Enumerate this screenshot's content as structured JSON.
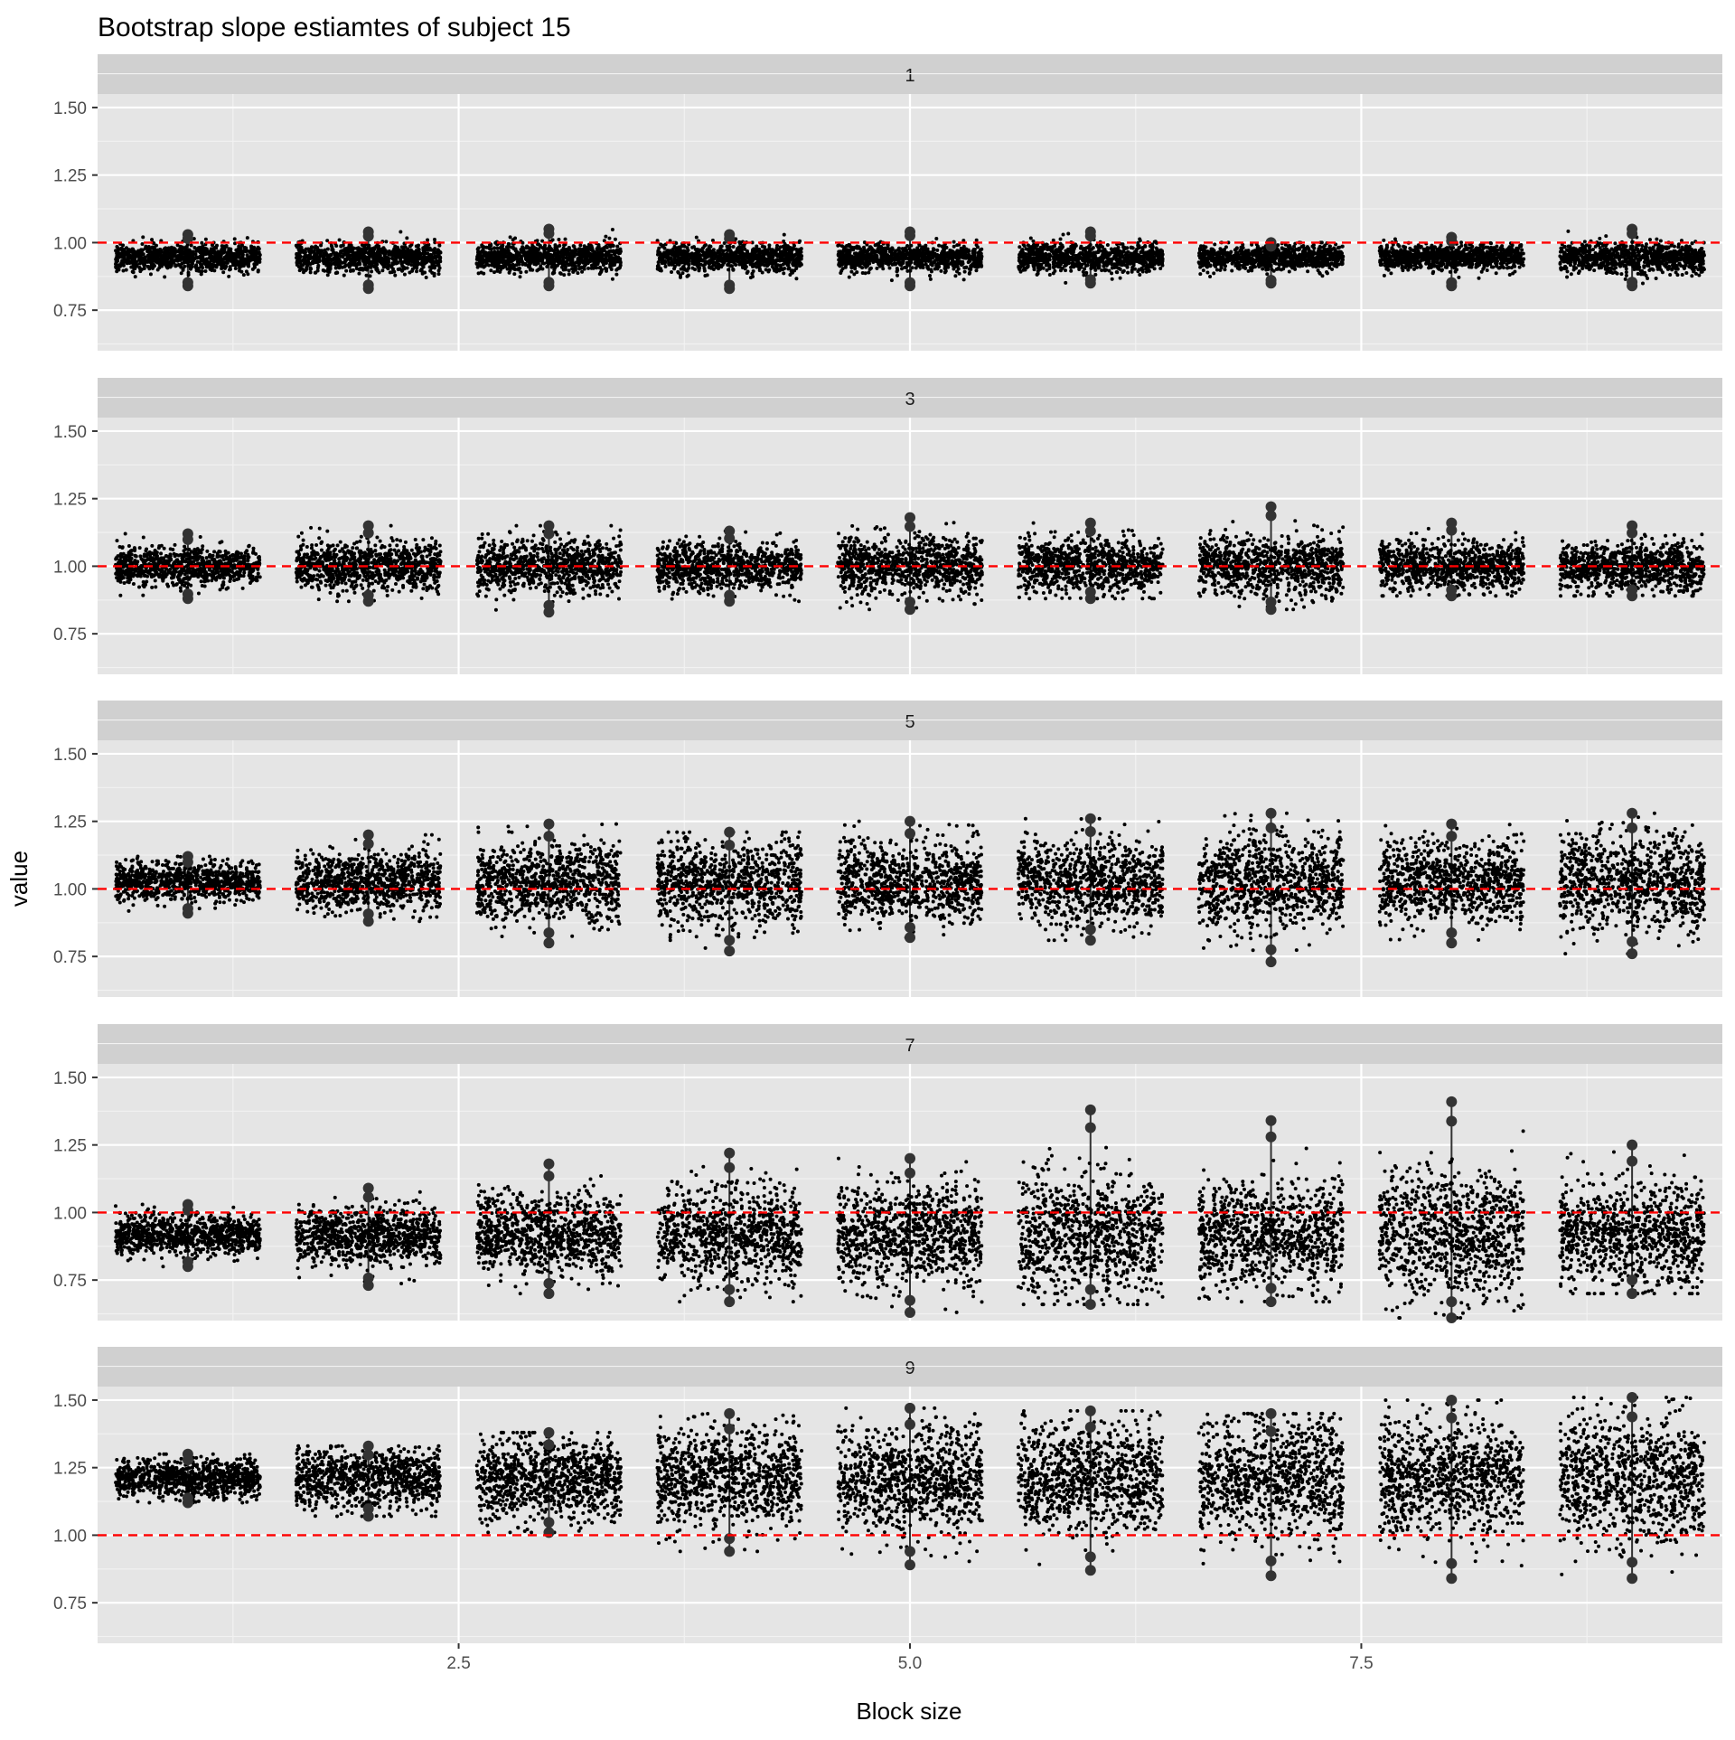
{
  "chart_data": {
    "type": "scatter",
    "title": "Bootstrap slope estiamtes of subject 15",
    "xlabel": "Block size",
    "ylabel": "value",
    "x_ticks": [
      2.5,
      5.0,
      7.5
    ],
    "x_tick_labels": [
      "2.5",
      "5.0",
      "7.5"
    ],
    "xlim": [
      0.5,
      9.5
    ],
    "y_ticks": [
      0.75,
      1.0,
      1.25,
      1.5
    ],
    "y_tick_labels": [
      "0.75",
      "1.00",
      "1.25",
      "1.50"
    ],
    "ylim": [
      0.6,
      1.55
    ],
    "reference_line": {
      "y": 1.0,
      "color": "#ff0000",
      "style": "dashed"
    },
    "grid": true,
    "panel_background": "#e5e5e5",
    "strip_background": "#d0d0d0",
    "point_color": "#000000",
    "outlier_color": "#333333",
    "panels": [
      {
        "label": "1",
        "groups": [
          {
            "x": 1,
            "center": 0.945,
            "spread": 0.025,
            "min": 0.84,
            "max": 1.03
          },
          {
            "x": 2,
            "center": 0.945,
            "spread": 0.027,
            "min": 0.83,
            "max": 1.04
          },
          {
            "x": 3,
            "center": 0.945,
            "spread": 0.027,
            "min": 0.84,
            "max": 1.05
          },
          {
            "x": 4,
            "center": 0.945,
            "spread": 0.026,
            "min": 0.83,
            "max": 1.03
          },
          {
            "x": 5,
            "center": 0.945,
            "spread": 0.024,
            "min": 0.84,
            "max": 1.04
          },
          {
            "x": 6,
            "center": 0.945,
            "spread": 0.026,
            "min": 0.85,
            "max": 1.04
          },
          {
            "x": 7,
            "center": 0.945,
            "spread": 0.022,
            "min": 0.85,
            "max": 1.0
          },
          {
            "x": 8,
            "center": 0.945,
            "spread": 0.024,
            "min": 0.84,
            "max": 1.02
          },
          {
            "x": 9,
            "center": 0.945,
            "spread": 0.028,
            "min": 0.84,
            "max": 1.05
          }
        ]
      },
      {
        "label": "3",
        "groups": [
          {
            "x": 1,
            "center": 1.0,
            "spread": 0.035,
            "min": 0.88,
            "max": 1.12
          },
          {
            "x": 2,
            "center": 1.0,
            "spread": 0.045,
            "min": 0.87,
            "max": 1.15
          },
          {
            "x": 3,
            "center": 1.0,
            "spread": 0.05,
            "min": 0.83,
            "max": 1.15
          },
          {
            "x": 4,
            "center": 1.0,
            "spread": 0.045,
            "min": 0.87,
            "max": 1.13
          },
          {
            "x": 5,
            "center": 1.0,
            "spread": 0.055,
            "min": 0.84,
            "max": 1.18
          },
          {
            "x": 6,
            "center": 1.0,
            "spread": 0.05,
            "min": 0.88,
            "max": 1.16
          },
          {
            "x": 7,
            "center": 1.0,
            "spread": 0.055,
            "min": 0.84,
            "max": 1.22
          },
          {
            "x": 8,
            "center": 1.0,
            "spread": 0.045,
            "min": 0.89,
            "max": 1.16
          },
          {
            "x": 9,
            "center": 1.0,
            "spread": 0.045,
            "min": 0.89,
            "max": 1.15
          }
        ]
      },
      {
        "label": "5",
        "groups": [
          {
            "x": 1,
            "center": 1.025,
            "spread": 0.035,
            "min": 0.91,
            "max": 1.12
          },
          {
            "x": 2,
            "center": 1.025,
            "spread": 0.055,
            "min": 0.88,
            "max": 1.2
          },
          {
            "x": 3,
            "center": 1.025,
            "spread": 0.075,
            "min": 0.8,
            "max": 1.24
          },
          {
            "x": 4,
            "center": 1.025,
            "spread": 0.08,
            "min": 0.77,
            "max": 1.21
          },
          {
            "x": 5,
            "center": 1.025,
            "spread": 0.075,
            "min": 0.82,
            "max": 1.25
          },
          {
            "x": 6,
            "center": 1.025,
            "spread": 0.08,
            "min": 0.81,
            "max": 1.26
          },
          {
            "x": 7,
            "center": 1.025,
            "spread": 0.09,
            "min": 0.73,
            "max": 1.28
          },
          {
            "x": 8,
            "center": 1.025,
            "spread": 0.075,
            "min": 0.8,
            "max": 1.24
          },
          {
            "x": 9,
            "center": 1.025,
            "spread": 0.09,
            "min": 0.76,
            "max": 1.28
          }
        ]
      },
      {
        "label": "7",
        "groups": [
          {
            "x": 1,
            "center": 0.915,
            "spread": 0.035,
            "min": 0.8,
            "max": 1.03
          },
          {
            "x": 2,
            "center": 0.915,
            "spread": 0.055,
            "min": 0.73,
            "max": 1.09
          },
          {
            "x": 3,
            "center": 0.915,
            "spread": 0.075,
            "min": 0.7,
            "max": 1.18
          },
          {
            "x": 4,
            "center": 0.915,
            "spread": 0.09,
            "min": 0.67,
            "max": 1.22
          },
          {
            "x": 5,
            "center": 0.915,
            "spread": 0.09,
            "min": 0.63,
            "max": 1.2
          },
          {
            "x": 6,
            "center": 0.915,
            "spread": 0.11,
            "min": 0.66,
            "max": 1.38
          },
          {
            "x": 7,
            "center": 0.915,
            "spread": 0.1,
            "min": 0.67,
            "max": 1.34
          },
          {
            "x": 8,
            "center": 0.915,
            "spread": 0.12,
            "min": 0.61,
            "max": 1.41
          },
          {
            "x": 9,
            "center": 0.915,
            "spread": 0.1,
            "min": 0.7,
            "max": 1.25
          }
        ]
      },
      {
        "label": "9",
        "groups": [
          {
            "x": 1,
            "center": 1.21,
            "spread": 0.035,
            "min": 1.12,
            "max": 1.3
          },
          {
            "x": 2,
            "center": 1.21,
            "spread": 0.055,
            "min": 1.07,
            "max": 1.33
          },
          {
            "x": 3,
            "center": 1.21,
            "spread": 0.075,
            "min": 1.01,
            "max": 1.38
          },
          {
            "x": 4,
            "center": 1.21,
            "spread": 0.095,
            "min": 0.94,
            "max": 1.45
          },
          {
            "x": 5,
            "center": 1.21,
            "spread": 0.1,
            "min": 0.89,
            "max": 1.47
          },
          {
            "x": 6,
            "center": 1.21,
            "spread": 0.1,
            "min": 0.87,
            "max": 1.46
          },
          {
            "x": 7,
            "center": 1.21,
            "spread": 0.11,
            "min": 0.85,
            "max": 1.45
          },
          {
            "x": 8,
            "center": 1.21,
            "spread": 0.11,
            "min": 0.84,
            "max": 1.5
          },
          {
            "x": 9,
            "center": 1.21,
            "spread": 0.12,
            "min": 0.84,
            "max": 1.51
          }
        ]
      }
    ]
  }
}
